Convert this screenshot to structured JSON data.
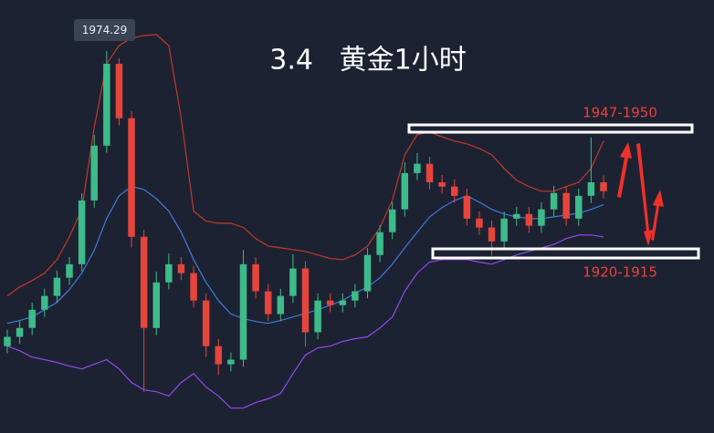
{
  "chart_data": {
    "type": "candlestick",
    "title": "3.4   黄金1小时",
    "annotations": [
      "1947-1950",
      "1920-1915"
    ],
    "categories": [
      null,
      null,
      null,
      null,
      null,
      null,
      null,
      null,
      null,
      null,
      null,
      null,
      null,
      null,
      null,
      null,
      null,
      null,
      null,
      null,
      null,
      null,
      null,
      null,
      null,
      null,
      null,
      null,
      null,
      null,
      null,
      null,
      null,
      null,
      null,
      null,
      null,
      null,
      null,
      null,
      null,
      null,
      null,
      null,
      null,
      null,
      null,
      null,
      null
    ],
    "up_color": "#3dbb8a",
    "down_color": "#e6453c",
    "candles": {
      "open": [
        1891.4,
        1894.0,
        1896.5,
        1901.6,
        1905.5,
        1910.6,
        1914.4,
        1932.3,
        1947.7,
        1970.7,
        1955.4,
        1922.1,
        1896.5,
        1909.3,
        1914.4,
        1911.9,
        1904.2,
        1891.4,
        1886.3,
        1887.6,
        1914.4,
        1906.8,
        1900.4,
        1905.5,
        1913.2,
        1895.3,
        1904.2,
        1902.9,
        1904.2,
        1906.8,
        1917.0,
        1923.4,
        1929.8,
        1940.0,
        1942.6,
        1937.4,
        1936.2,
        1933.6,
        1927.2,
        1924.7,
        1920.8,
        1927.2,
        1928.5,
        1925.2,
        1929.8,
        1934.4,
        1927.2,
        1933.6,
        1937.4
      ],
      "high": [
        1896.0,
        1898.5,
        1903.6,
        1907.5,
        1912.6,
        1916.4,
        1934.3,
        1950.7,
        1974.29,
        1972.2,
        1957.4,
        1924.1,
        1912.3,
        1917.4,
        1916.4,
        1913.9,
        1906.2,
        1893.4,
        1889.6,
        1918.4,
        1916.4,
        1908.8,
        1907.5,
        1917.2,
        1915.2,
        1906.2,
        1906.2,
        1906.2,
        1908.8,
        1919.0,
        1925.4,
        1931.8,
        1943.0,
        1945.6,
        1944.6,
        1939.4,
        1938.2,
        1935.6,
        1929.2,
        1926.7,
        1929.2,
        1930.5,
        1930.5,
        1931.8,
        1936.4,
        1936.4,
        1935.6,
        1950.0,
        1939.4
      ],
      "low": [
        1889.4,
        1892.0,
        1894.5,
        1899.6,
        1903.5,
        1908.6,
        1912.4,
        1930.3,
        1945.7,
        1953.4,
        1919.1,
        1878.6,
        1894.5,
        1907.3,
        1909.9,
        1902.2,
        1888.4,
        1883.3,
        1884.3,
        1885.6,
        1904.8,
        1898.4,
        1898.4,
        1903.5,
        1891.3,
        1893.3,
        1900.9,
        1900.9,
        1902.2,
        1904.8,
        1915.0,
        1921.4,
        1927.8,
        1938.0,
        1935.4,
        1934.2,
        1931.6,
        1925.2,
        1922.7,
        1916.8,
        1918.8,
        1925.2,
        1923.2,
        1923.2,
        1927.8,
        1925.2,
        1925.2,
        1931.6,
        1932.9
      ],
      "close": [
        1894.0,
        1896.5,
        1901.6,
        1905.5,
        1910.6,
        1914.4,
        1932.3,
        1947.7,
        1970.7,
        1955.4,
        1922.1,
        1896.5,
        1909.3,
        1914.4,
        1911.9,
        1904.2,
        1891.4,
        1886.3,
        1887.6,
        1914.4,
        1906.8,
        1900.4,
        1905.5,
        1913.2,
        1895.3,
        1904.2,
        1902.9,
        1904.2,
        1906.8,
        1917.0,
        1923.4,
        1929.8,
        1940.0,
        1942.6,
        1937.4,
        1936.2,
        1933.6,
        1927.2,
        1924.7,
        1920.8,
        1927.2,
        1928.5,
        1925.2,
        1929.8,
        1934.4,
        1927.2,
        1933.6,
        1937.4,
        1934.9
      ]
    },
    "series": [
      {
        "color": "#c0392b",
        "values": [
          1905.5,
          1908.0,
          1909.8,
          1911.9,
          1915.7,
          1922.1,
          1929.8,
          1952.8,
          1970.7,
          1975.8,
          1977.9,
          1978.6,
          1978.9,
          1975.8,
          1955.4,
          1929.3,
          1926.5,
          1925.9,
          1925.9,
          1924.7,
          1921.6,
          1919.5,
          1919.0,
          1918.5,
          1918.0,
          1917.0,
          1916.0,
          1915.7,
          1917.0,
          1919.5,
          1924.7,
          1932.3,
          1945.1,
          1950.8,
          1951.5,
          1950.2,
          1949.0,
          1948.2,
          1946.9,
          1945.1,
          1941.3,
          1938.0,
          1936.2,
          1934.9,
          1934.9,
          1936.2,
          1937.4,
          1941.3,
          1949.0
        ]
      },
      {
        "color": "#3b7ddd",
        "values": [
          1897.8,
          1898.6,
          1899.6,
          1901.6,
          1903.7,
          1907.3,
          1911.9,
          1918.3,
          1927.2,
          1933.6,
          1936.2,
          1935.4,
          1932.8,
          1929.3,
          1923.4,
          1915.7,
          1909.3,
          1904.2,
          1900.4,
          1899.1,
          1898.3,
          1897.8,
          1898.6,
          1899.6,
          1900.6,
          1901.6,
          1902.9,
          1904.2,
          1906.3,
          1908.0,
          1910.6,
          1914.4,
          1919.0,
          1923.4,
          1927.7,
          1930.3,
          1932.3,
          1933.6,
          1931.8,
          1929.8,
          1928.5,
          1927.7,
          1927.2,
          1927.2,
          1927.7,
          1928.2,
          1928.7,
          1929.8,
          1931.1
        ]
      },
      {
        "color": "#8e4bee",
        "values": [
          1891.4,
          1890.1,
          1888.3,
          1887.6,
          1886.8,
          1885.8,
          1885.0,
          1886.3,
          1887.6,
          1885.0,
          1881.2,
          1879.1,
          1878.6,
          1877.4,
          1881.2,
          1883.7,
          1879.9,
          1877.4,
          1874.0,
          1874.0,
          1875.6,
          1876.6,
          1878.1,
          1883.7,
          1888.9,
          1890.9,
          1891.4,
          1892.7,
          1893.5,
          1894.0,
          1896.5,
          1899.6,
          1906.8,
          1911.9,
          1915.0,
          1915.7,
          1915.7,
          1915.7,
          1915.0,
          1914.4,
          1915.7,
          1917.0,
          1918.0,
          1919.0,
          1920.0,
          1921.6,
          1922.6,
          1922.6,
          1922.1
        ]
      }
    ],
    "ylim": [
      1867,
      1988.6
    ]
  }
}
